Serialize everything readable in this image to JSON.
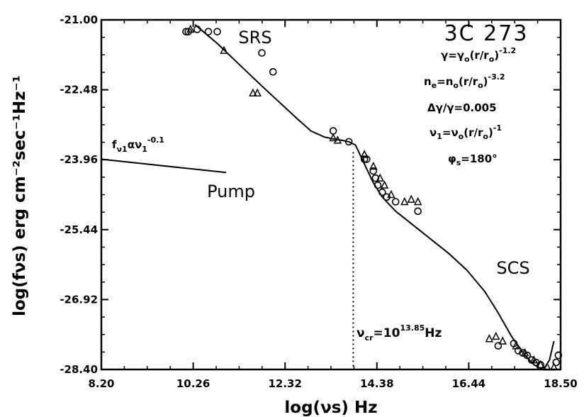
{
  "chart_data": {
    "type": "scatter",
    "title": "3C 273",
    "xlabel": "log(νs) Hz",
    "ylabel": "log(fνs) erg cm⁻²sec⁻¹Hz⁻¹",
    "xlim": [
      8.2,
      18.5
    ],
    "ylim": [
      -28.4,
      -21.0
    ],
    "xticks": [
      "8.20",
      "10.26",
      "12.32",
      "14.38",
      "16.44",
      "18.50"
    ],
    "yticks": [
      "-21.00",
      "-22.48",
      "-23.96",
      "-25.44",
      "-26.92",
      "-28.40"
    ],
    "grid": false,
    "legend": "none",
    "region_labels": [
      {
        "text": "SRS",
        "x": 11.8,
        "y": -21.15
      },
      {
        "text": "Pump",
        "x": 10.9,
        "y": -24.4
      },
      {
        "text": "SCS",
        "x": 17.3,
        "y": -26.2
      }
    ],
    "pump_label": {
      "base": "f",
      "sub": "ν1",
      "mid": "αν",
      "mid_sub": "1",
      "sup": "-0.1"
    },
    "critical_label": {
      "base": "ν",
      "sub": "cr",
      "mid": "=10",
      "sup": "13.85",
      "end": "Hz"
    },
    "critical_x": 13.85,
    "parameters": [
      {
        "base": "γ=γ",
        "sub": "o",
        "mid": "(r/r",
        "sub2": "o",
        "end": ")",
        "sup": "-1.2"
      },
      {
        "base": "n",
        "sub": "e",
        "mid": "=n",
        "sub2": "o",
        "mid2": "(r/r",
        "sub3": "o",
        "end": ")",
        "sup": "-3.2"
      },
      {
        "base": "Δγ/γ=0.005"
      },
      {
        "base": "ν",
        "sub": "1",
        "mid": "=ν",
        "sub2": "o",
        "mid2": "(r/r",
        "sub3": "o",
        "end": ")",
        "sup": "-1"
      },
      {
        "base": "φ",
        "sub": "s",
        "mid": "=180°"
      }
    ],
    "series": [
      {
        "marker": "line",
        "x": [
          10.3,
          10.8,
          11.3,
          11.8,
          12.2,
          12.6,
          12.9,
          13.2,
          13.4,
          13.6,
          13.75,
          13.9,
          14.0,
          14.15,
          14.3,
          14.5,
          14.8,
          15.2,
          15.6,
          16.0,
          16.4,
          16.8,
          17.1,
          17.4,
          17.7,
          17.9,
          18.05,
          18.15,
          18.25,
          18.3,
          18.35
        ],
        "y": [
          -21.1,
          -21.5,
          -21.95,
          -22.4,
          -22.75,
          -23.1,
          -23.35,
          -23.48,
          -23.52,
          -23.55,
          -23.58,
          -23.65,
          -23.85,
          -24.15,
          -24.45,
          -24.75,
          -25.05,
          -25.35,
          -25.65,
          -25.95,
          -26.3,
          -26.75,
          -27.2,
          -27.7,
          -28.1,
          -28.3,
          -28.38,
          -28.35,
          -28.2,
          -28.0,
          -27.8
        ]
      },
      {
        "marker": "line",
        "x": [
          8.2,
          9.3,
          10.2,
          11.0
        ],
        "y": [
          -23.95,
          -24.06,
          -24.15,
          -24.23
        ]
      },
      {
        "marker": "circle",
        "x": [
          10.1,
          10.15,
          10.35,
          10.6,
          10.8,
          11.8,
          12.05,
          13.4,
          13.75,
          14.1,
          14.15,
          14.3,
          14.35,
          14.4,
          14.5,
          14.6,
          14.8,
          15.3,
          17.1,
          17.45,
          17.55,
          17.65,
          17.75,
          17.85,
          17.95,
          18.05,
          18.4,
          18.45
        ],
        "y": [
          -21.25,
          -21.25,
          -21.2,
          -21.25,
          -21.25,
          -21.7,
          -22.1,
          -23.35,
          -23.58,
          -23.95,
          -23.95,
          -24.2,
          -24.35,
          -24.5,
          -24.65,
          -24.75,
          -24.85,
          -25.05,
          -27.9,
          -27.85,
          -28.0,
          -28.05,
          -28.1,
          -28.2,
          -28.25,
          -28.3,
          -28.25,
          -28.1
        ]
      },
      {
        "marker": "triangle",
        "x": [
          10.2,
          10.95,
          11.6,
          11.7,
          13.4,
          13.5,
          14.1,
          14.3,
          14.45,
          14.55,
          14.7,
          15.0,
          15.15,
          15.3,
          16.9,
          17.05,
          17.2,
          17.5,
          17.7,
          17.9,
          18.05,
          18.2,
          18.35
        ],
        "y": [
          -21.2,
          -21.65,
          -22.55,
          -22.55,
          -23.5,
          -23.55,
          -23.85,
          -24.1,
          -24.35,
          -24.5,
          -24.7,
          -24.85,
          -24.8,
          -24.85,
          -27.75,
          -27.7,
          -27.8,
          -27.9,
          -28.05,
          -28.2,
          -28.3,
          -28.35,
          -28.35
        ]
      }
    ]
  }
}
